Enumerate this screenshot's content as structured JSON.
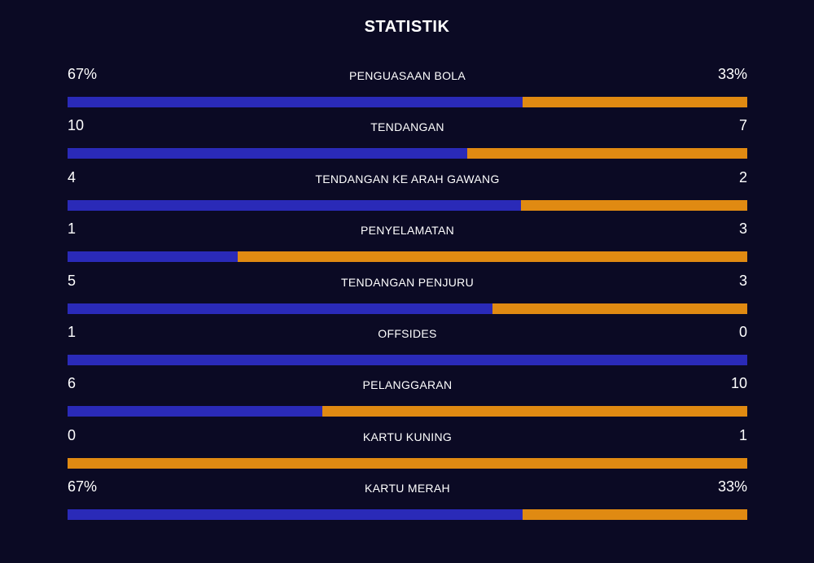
{
  "title": "STATISTIK",
  "colors": {
    "home": "#2a2ab8",
    "away": "#e08a12",
    "background": "#0b0a24"
  },
  "stats": [
    {
      "name": "PENGUASAAN BOLA",
      "home": "67%",
      "away": "33%",
      "home_share": 0.67
    },
    {
      "name": "TENDANGAN",
      "home": "10",
      "away": "7",
      "home_share": 0.588
    },
    {
      "name": "TENDANGAN KE ARAH GAWANG",
      "home": "4",
      "away": "2",
      "home_share": 0.667
    },
    {
      "name": "PENYELAMATAN",
      "home": "1",
      "away": "3",
      "home_share": 0.25
    },
    {
      "name": "TENDANGAN PENJURU",
      "home": "5",
      "away": "3",
      "home_share": 0.625
    },
    {
      "name": "OFFSIDES",
      "home": "1",
      "away": "0",
      "home_share": 1.0
    },
    {
      "name": "PELANGGARAN",
      "home": "6",
      "away": "10",
      "home_share": 0.375
    },
    {
      "name": "KARTU KUNING",
      "home": "0",
      "away": "1",
      "home_share": 0.0
    },
    {
      "name": "KARTU MERAH",
      "home": "67%",
      "away": "33%",
      "home_share": 0.67
    }
  ]
}
